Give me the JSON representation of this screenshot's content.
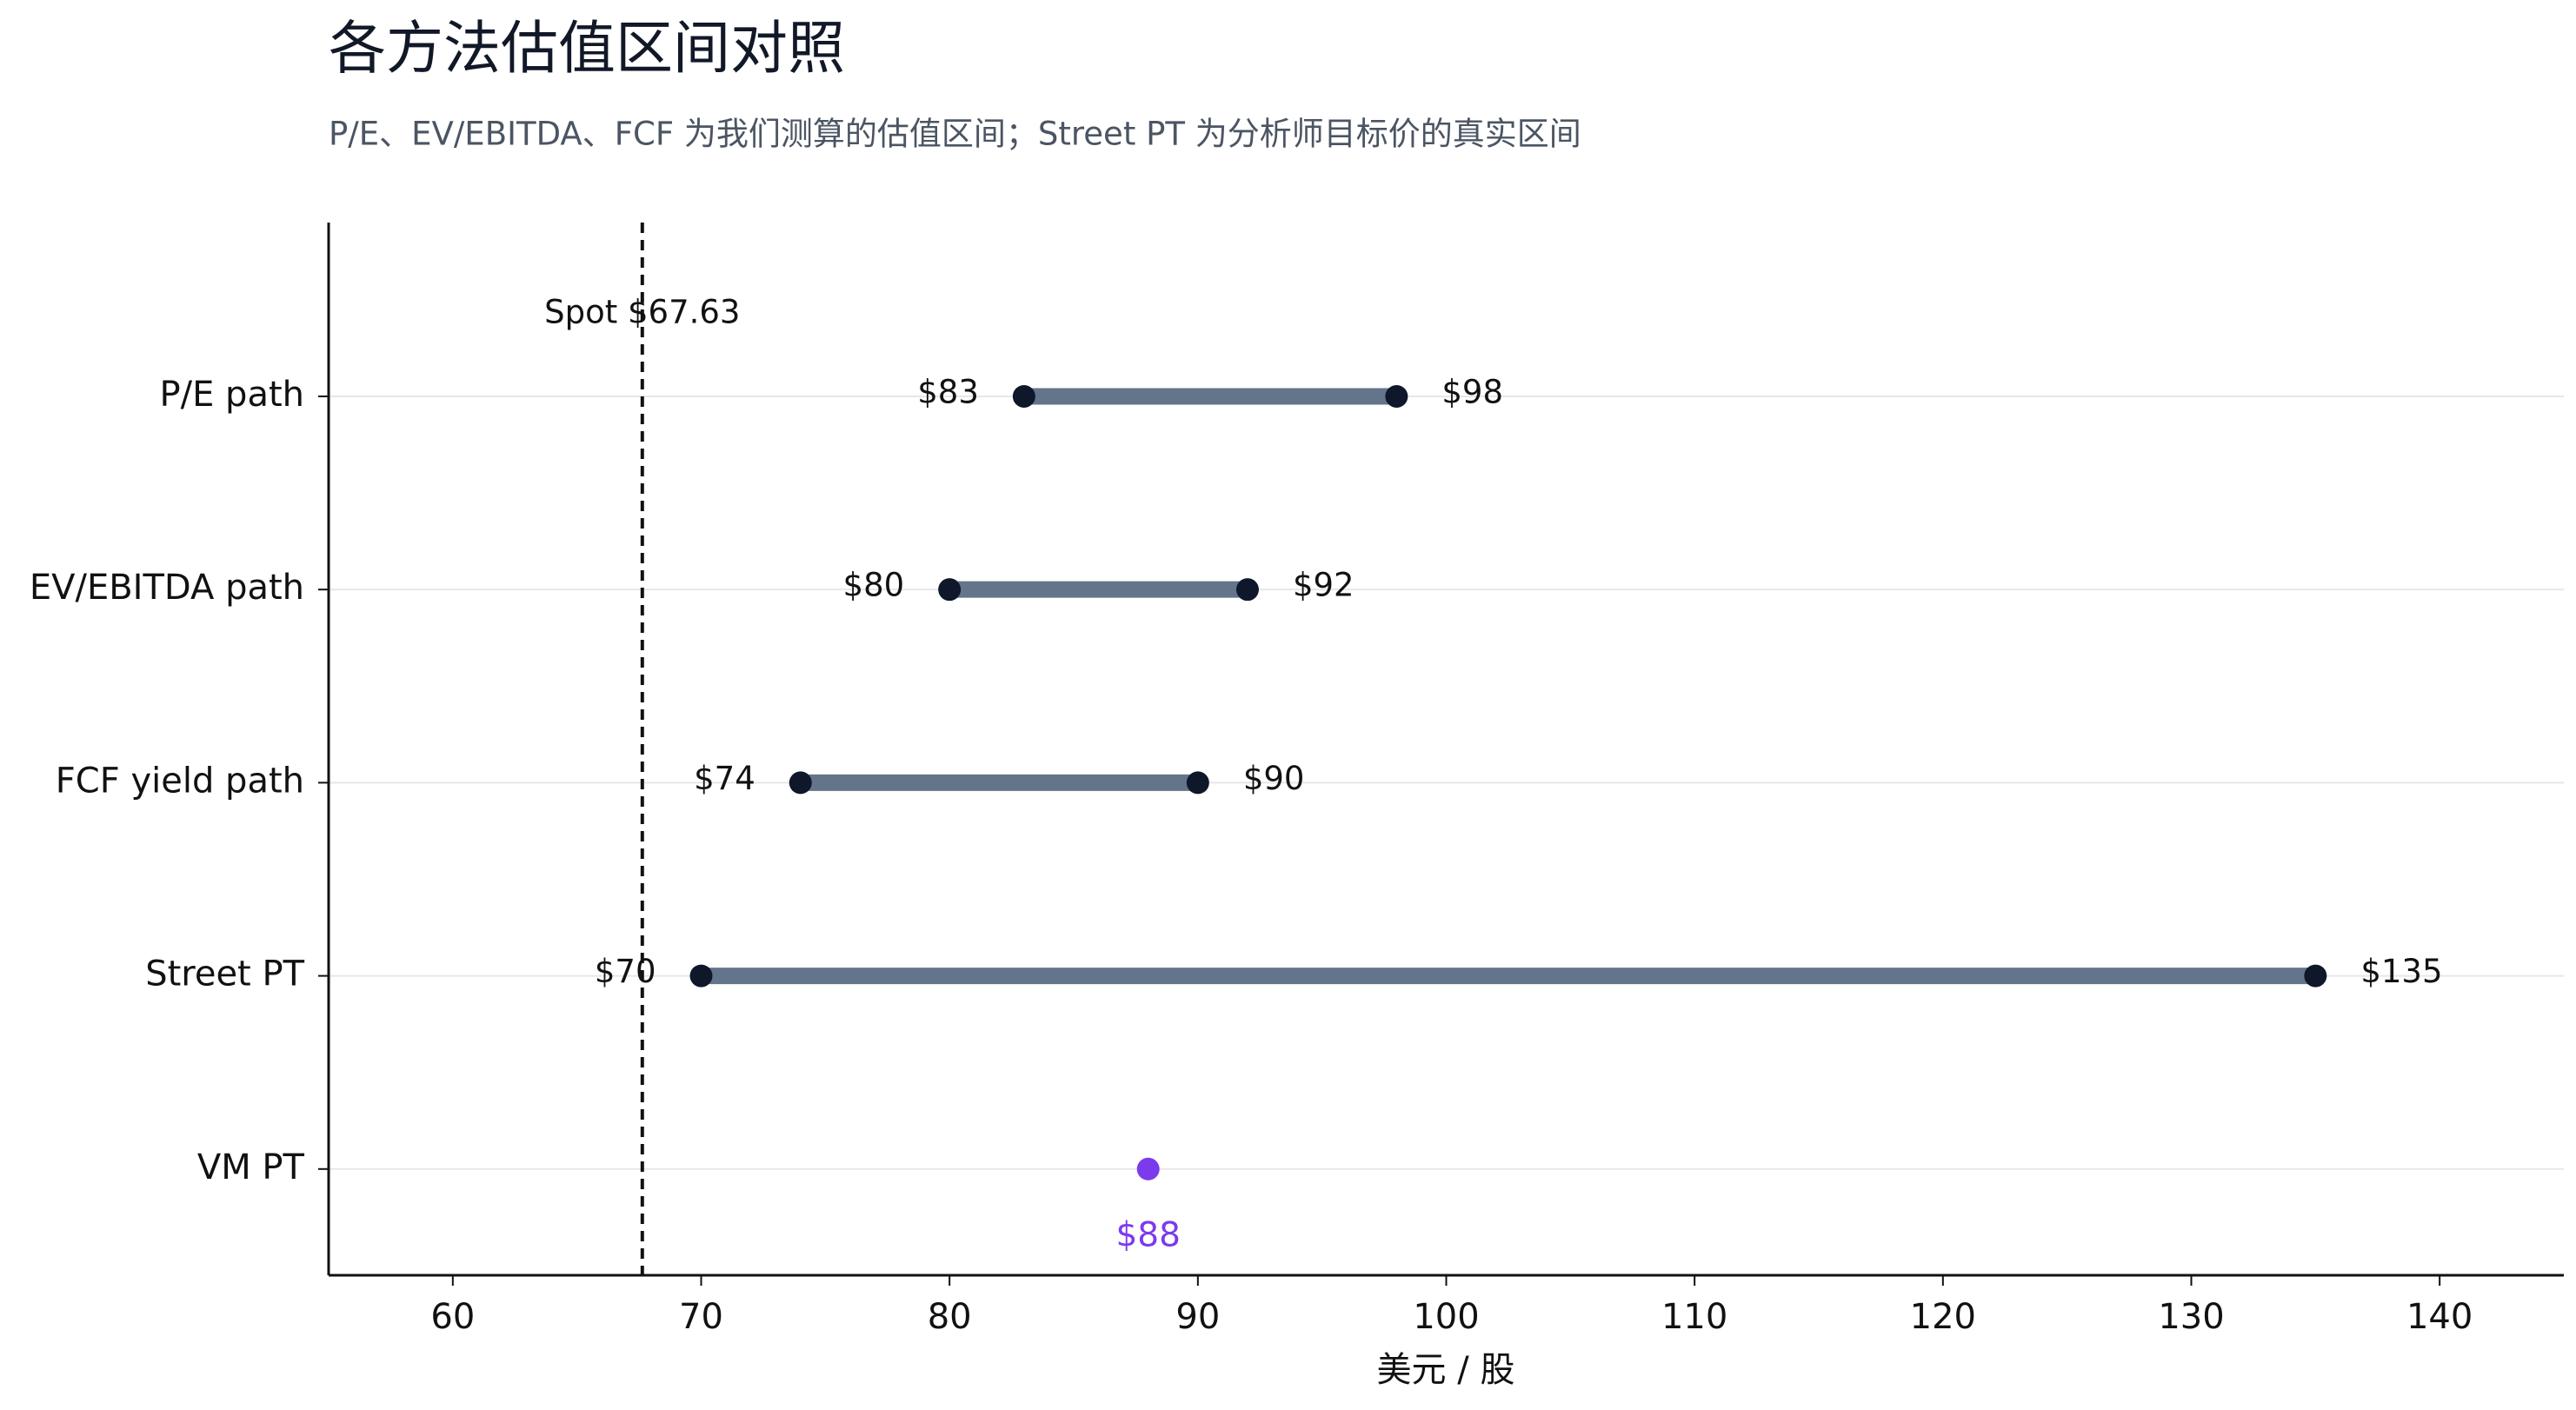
{
  "chart_data": {
    "type": "dumbbell",
    "title": "各方法估值区间对照",
    "subtitle": "P/E、EV/EBITDA、FCF 为我们测算的估值区间；Street PT 为分析师目标价的真实区间",
    "x_label": "美元 / 股",
    "categories": [
      "P/E path",
      "EV/EBITDA path",
      "FCF yield path",
      "Street PT",
      "VM PT"
    ],
    "low": {
      "values": [
        83,
        80,
        74,
        70,
        null
      ],
      "value_labels": [
        "$83",
        "$80",
        "$74",
        "$70",
        null
      ]
    },
    "high": {
      "values": [
        98,
        92,
        90,
        135,
        null
      ],
      "value_labels": [
        "$98",
        "$92",
        "$90",
        "$135",
        null
      ]
    },
    "target": {
      "values": [
        null,
        null,
        null,
        null,
        88
      ],
      "value_labels": [
        null,
        null,
        null,
        null,
        "$88"
      ],
      "color": "#7c3aed"
    },
    "range_color": "#64748b",
    "dot_color": "#0f172a",
    "reference_line": {
      "value": 67.63,
      "label": "Spot $67.63"
    },
    "xlim": [
      55,
      145
    ],
    "xticks": [
      60,
      70,
      80,
      90,
      100,
      110,
      120,
      130,
      140
    ],
    "grid": true
  }
}
